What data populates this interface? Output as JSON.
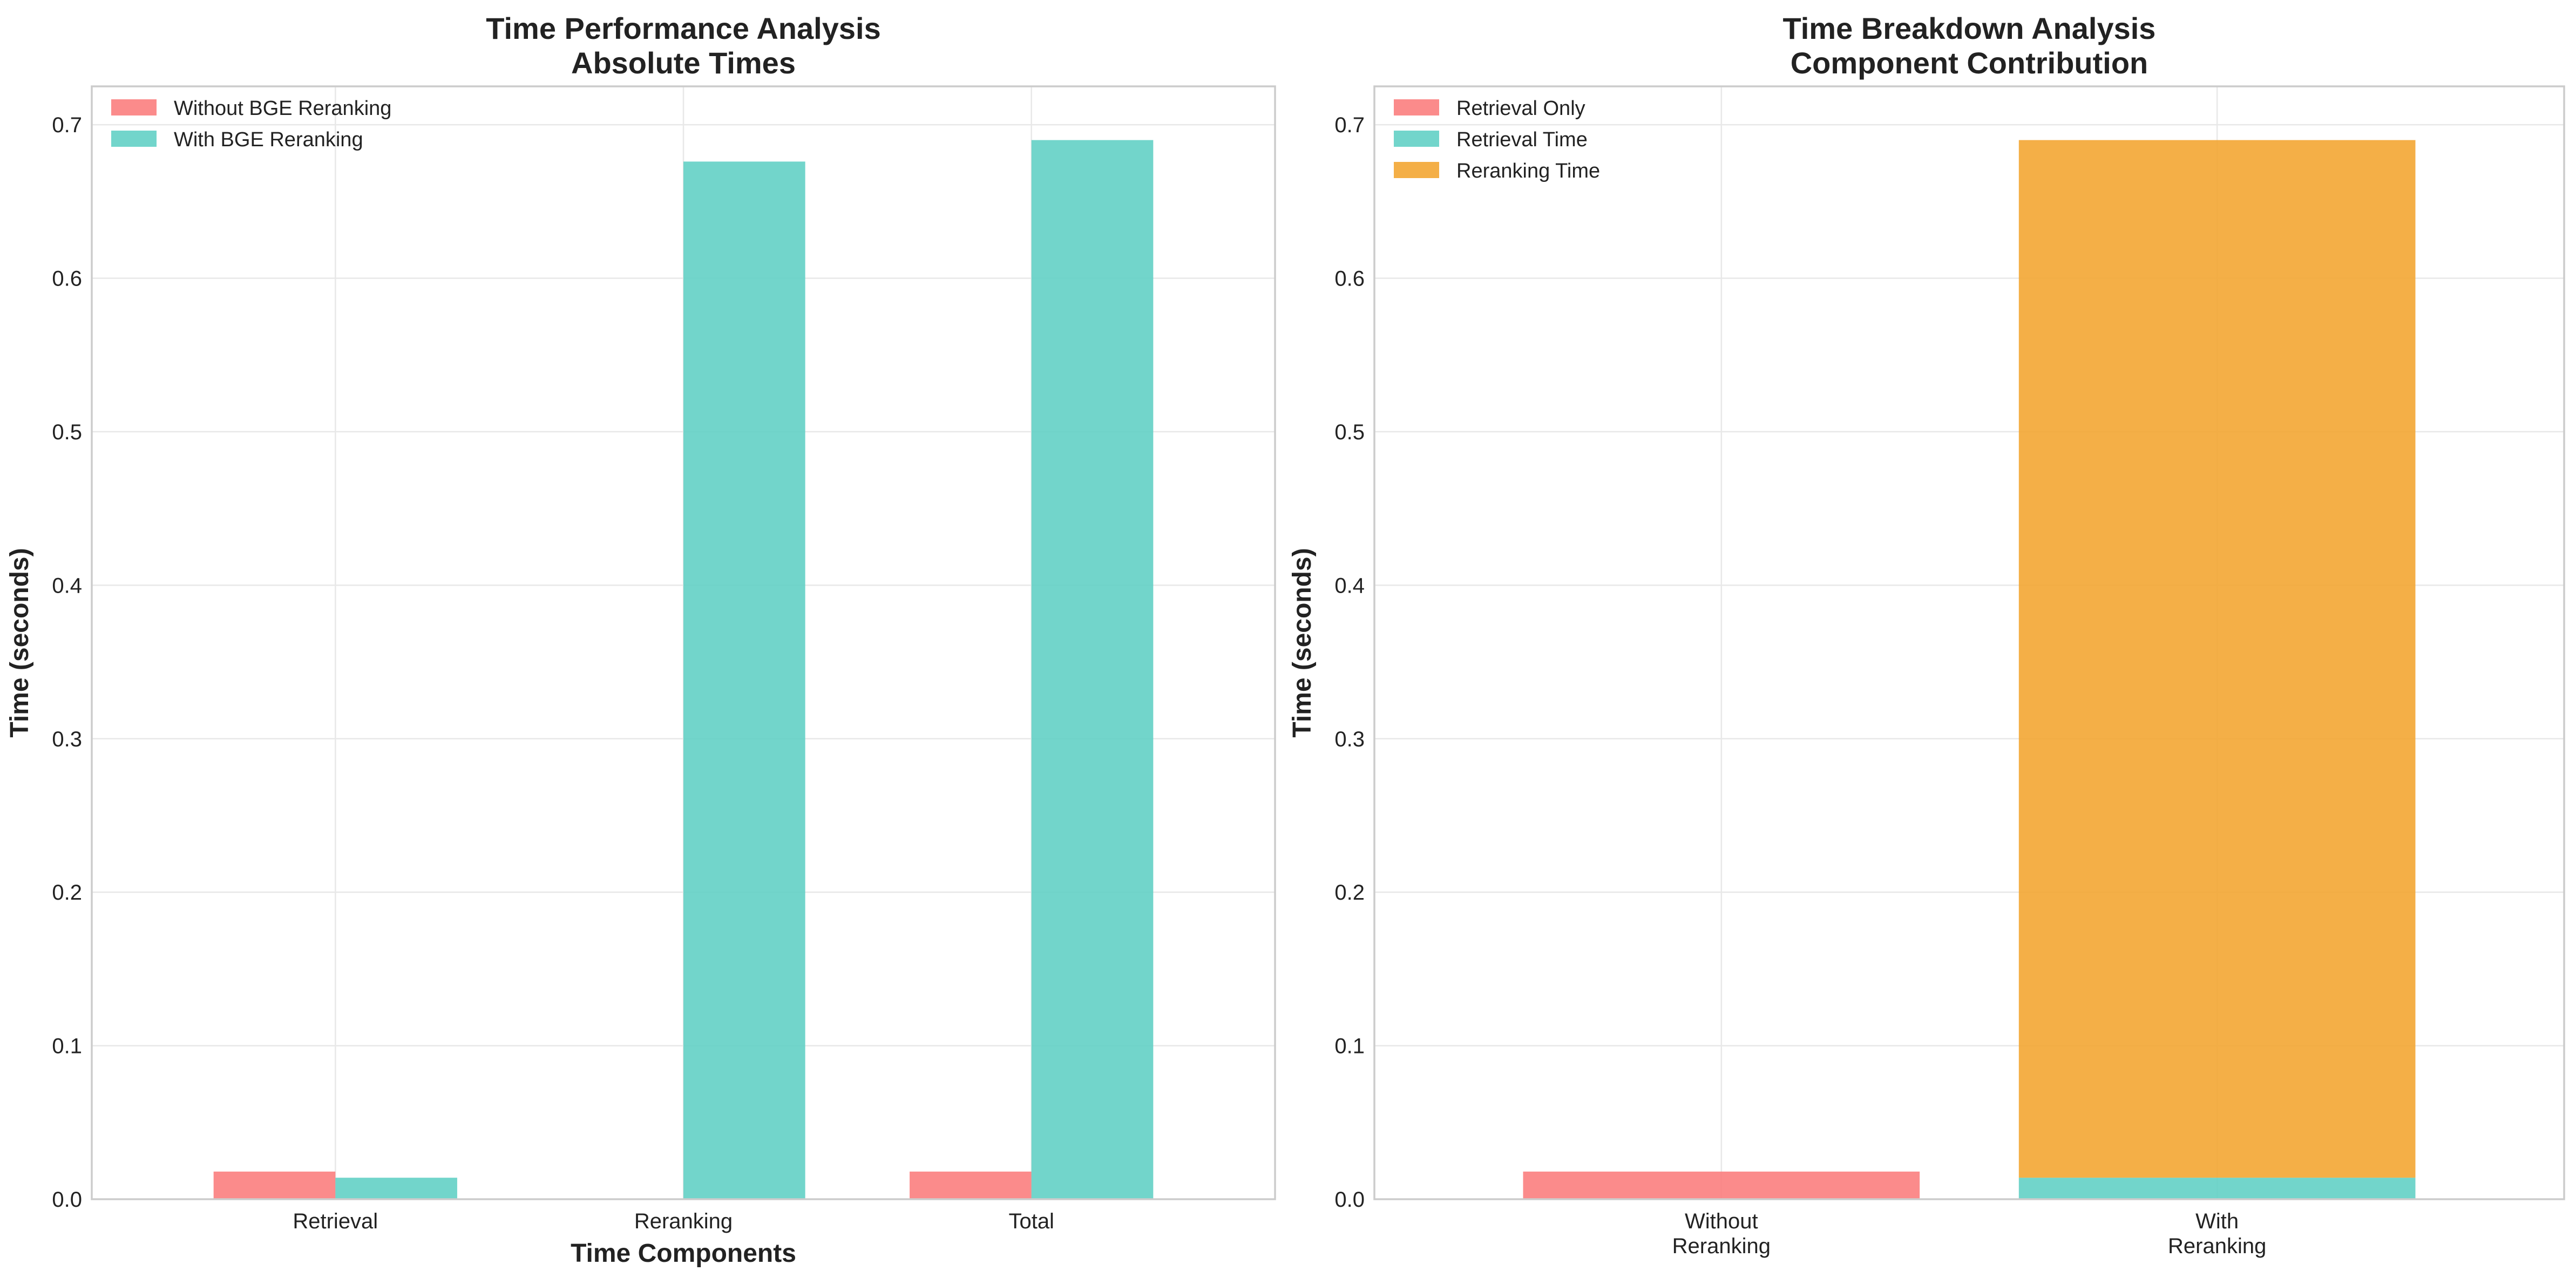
{
  "chart_data": [
    {
      "type": "bar",
      "title": [
        "Time Performance Analysis",
        "Absolute Times"
      ],
      "xlabel": "Time Components",
      "ylabel": "Time (seconds)",
      "categories": [
        "Retrieval",
        "Reranking",
        "Total"
      ],
      "series": [
        {
          "name": "Without BGE Reranking",
          "values": [
            0.018,
            0,
            0.018
          ],
          "color": "#fa7b7b"
        },
        {
          "name": "With BGE Reranking",
          "values": [
            0.014,
            0.676,
            0.69
          ],
          "color": "#5ecfc4"
        }
      ],
      "ylim": [
        0,
        0.725
      ],
      "yticks": [
        "0.0",
        "0.1",
        "0.2",
        "0.3",
        "0.4",
        "0.5",
        "0.6",
        "0.7"
      ],
      "grid": true,
      "legend": "top-left"
    },
    {
      "type": "bar",
      "stacked": true,
      "title": [
        "Time Breakdown Analysis",
        "Component Contribution"
      ],
      "xlabel": "",
      "ylabel": "Time (seconds)",
      "categories": [
        [
          "Without",
          "Reranking"
        ],
        [
          "With",
          "Reranking"
        ]
      ],
      "series": [
        {
          "name": "Retrieval Only",
          "values": [
            0.018,
            0
          ],
          "color": "#fa7b7b"
        },
        {
          "name": "Retrieval Time",
          "values": [
            0,
            0.014
          ],
          "color": "#5ecfc4"
        },
        {
          "name": "Reranking Time",
          "values": [
            0,
            0.676
          ],
          "color": "#f3a42d"
        }
      ],
      "ylim": [
        0,
        0.725
      ],
      "yticks": [
        "0.0",
        "0.1",
        "0.2",
        "0.3",
        "0.4",
        "0.5",
        "0.6",
        "0.7"
      ],
      "grid": true,
      "legend": "top-left"
    }
  ]
}
